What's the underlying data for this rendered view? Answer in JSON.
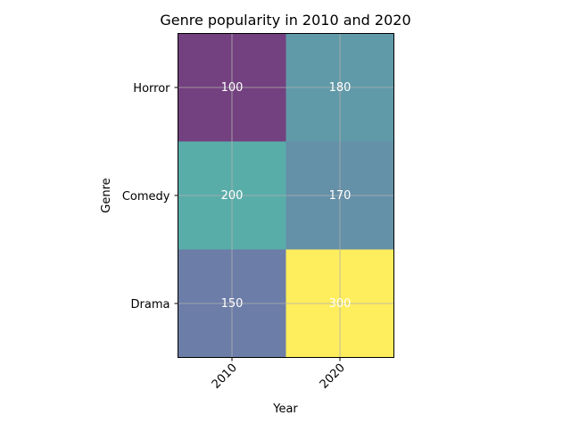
{
  "chart_data": {
    "type": "heatmap",
    "title": "Genre popularity in 2010 and 2020",
    "xlabel": "Year",
    "ylabel": "Genre",
    "x_categories": [
      "2010",
      "2020"
    ],
    "y_categories": [
      "Horror",
      "Comedy",
      "Drama"
    ],
    "values": [
      [
        100,
        180
      ],
      [
        200,
        170
      ],
      [
        150,
        300
      ]
    ],
    "colormap": "viridis",
    "cell_alpha": 0.75,
    "value_range": [
      100,
      300
    ],
    "annotation_color": "#ffffff",
    "grid": true,
    "x_tick_rotation_deg": 45
  }
}
